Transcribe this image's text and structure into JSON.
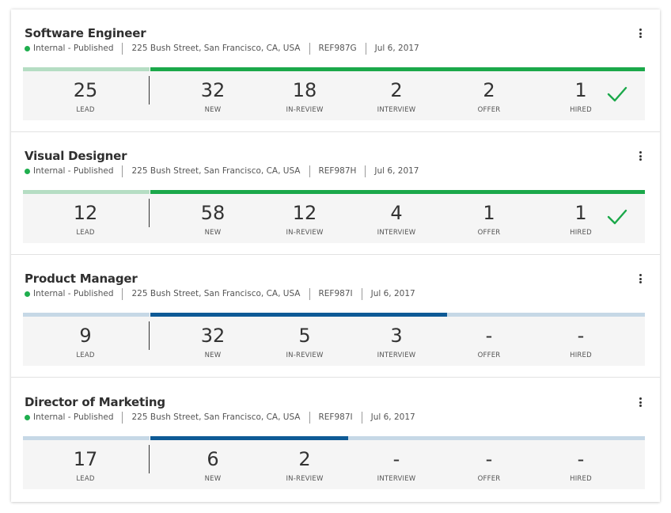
{
  "colors": {
    "status_dot": "#1fae4e",
    "progress_green": "#1ba84a",
    "progress_green_light": "#b5ddc3",
    "progress_blue": "#0e5a96",
    "progress_blue_light": "#c6d8e6",
    "check_green": "#1ba84a"
  },
  "stage_labels": [
    "LEAD",
    "NEW",
    "IN-REVIEW",
    "INTERVIEW",
    "OFFER",
    "HIRED"
  ],
  "jobs": [
    {
      "title": "Software Engineer",
      "status": "Internal - Published",
      "address": "225 Bush Street, San Francisco, CA, USA",
      "ref": "REF987G",
      "date": "Jul 6, 2017",
      "bar_color": "green",
      "progress_fraction": 1.0,
      "hired_check": true,
      "stages": [
        "25",
        "32",
        "18",
        "2",
        "2",
        "1"
      ]
    },
    {
      "title": "Visual Designer",
      "status": "Internal - Published",
      "address": "225 Bush Street, San Francisco, CA, USA",
      "ref": "REF987H",
      "date": "Jul 6, 2017",
      "bar_color": "green",
      "progress_fraction": 1.0,
      "hired_check": true,
      "stages": [
        "12",
        "58",
        "12",
        "4",
        "1",
        "1"
      ]
    },
    {
      "title": "Product Manager",
      "status": "Internal - Published",
      "address": "225 Bush Street, San Francisco, CA, USA",
      "ref": "REF987I",
      "date": "Jul 6, 2017",
      "bar_color": "blue",
      "progress_fraction": 0.6,
      "hired_check": false,
      "stages": [
        "9",
        "32",
        "5",
        "3",
        "-",
        "-"
      ]
    },
    {
      "title": "Director of Marketing",
      "status": "Internal - Published",
      "address": "225 Bush Street, San Francisco, CA, USA",
      "ref": "REF987I",
      "date": "Jul 6, 2017",
      "bar_color": "blue",
      "progress_fraction": 0.4,
      "hired_check": false,
      "stages": [
        "17",
        "6",
        "2",
        "-",
        "-",
        "-"
      ]
    }
  ]
}
